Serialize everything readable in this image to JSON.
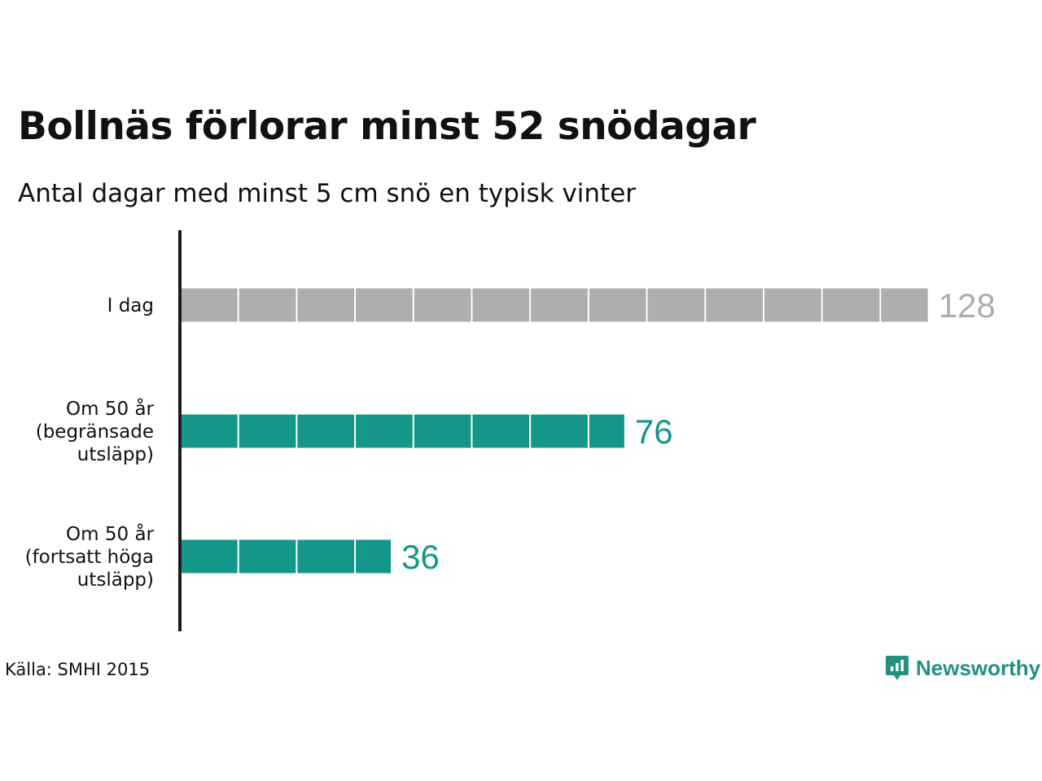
{
  "title": "Bollnäs förlorar minst 52 snödagar",
  "subtitle": "Antal dagar med minst 5 cm snö en typisk vinter",
  "source": "Källa: SMHI 2015",
  "brand": {
    "name": "Newsworthy",
    "icon": "newsworthy-logo-icon",
    "color": "#249082"
  },
  "colors": {
    "baseline": "#aeaeae",
    "scenario": "#14978a",
    "axis": "#1a1a1a",
    "text": "#111111"
  },
  "chart_data": {
    "type": "bar",
    "orientation": "horizontal",
    "title": "Bollnäs förlorar minst 52 snödagar",
    "subtitle": "Antal dagar med minst 5 cm snö en typisk vinter",
    "categories": [
      [
        "I dag"
      ],
      [
        "Om 50 år",
        "(begränsade",
        "utsläpp)"
      ],
      [
        "Om 50 år",
        "(fortsatt höga",
        "utsläpp)"
      ]
    ],
    "values": [
      128,
      76,
      36
    ],
    "data_labels": [
      "128",
      "76",
      "36"
    ],
    "segment_size": 10,
    "xlim": [
      0,
      130
    ],
    "grid": false,
    "legend": "none"
  }
}
